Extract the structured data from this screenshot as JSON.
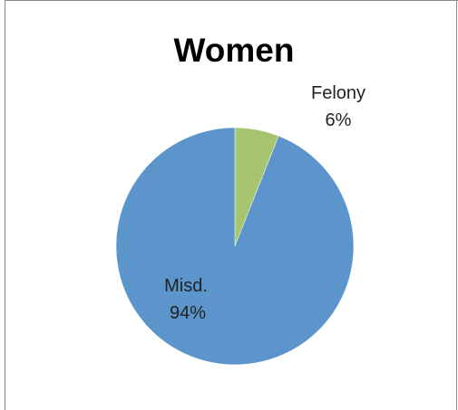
{
  "chart_data": {
    "type": "pie",
    "title": "Women",
    "categories": [
      "Misd.",
      "Felony"
    ],
    "values": [
      94,
      6
    ],
    "labels": [
      {
        "name": "Misd.",
        "percent": "94%"
      },
      {
        "name": "Felony",
        "percent": "6%"
      }
    ],
    "colors": [
      "#5B95CB",
      "#A6C56E"
    ],
    "start_angle_deg": 0,
    "legend": "none"
  }
}
